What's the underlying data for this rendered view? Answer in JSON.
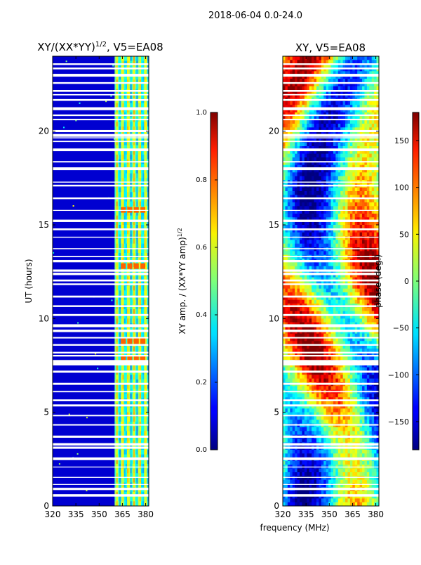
{
  "figure_title": "2018-06-04 0.0-24.0",
  "shared_xlabel": "frequency (MHz)",
  "chart_data": [
    {
      "type": "heatmap",
      "title_main": "XY/(XX*YY)",
      "title_sup": "1/2",
      "title_tail": ", V5=EA08",
      "xlabel": "",
      "ylabel": "UT (hours)",
      "xlim": [
        320,
        382
      ],
      "ylim": [
        0,
        24
      ],
      "x_ticks": [
        320,
        335,
        350,
        365,
        380
      ],
      "y_ticks": [
        0,
        5,
        10,
        15,
        20
      ],
      "colormap": "jet",
      "colorbar": {
        "label_main": "XY amp. / (XX*YY amp)",
        "label_sup": "1/2",
        "range": [
          0.0,
          1.0
        ],
        "ticks": [
          "0.0",
          "0.2",
          "0.4",
          "0.6",
          "0.8",
          "1.0"
        ],
        "tick_values": [
          0.0,
          0.2,
          0.4,
          0.6,
          0.8,
          1.0
        ]
      },
      "background_value": 0.08,
      "bright_band_MHz": [
        360,
        382
      ],
      "hot_rows_UT": [
        7.9,
        8.8,
        12.8,
        15.8
      ]
    },
    {
      "type": "heatmap",
      "title": "XY, V5=EA08",
      "xlabel": "frequency (MHz)",
      "ylabel": "",
      "xlim": [
        320,
        382
      ],
      "ylim": [
        0,
        24
      ],
      "x_ticks": [
        320,
        335,
        350,
        365,
        380
      ],
      "y_ticks": [
        0,
        5,
        10,
        15,
        20
      ],
      "colormap": "jet",
      "colorbar": {
        "label": "phase (deg.)",
        "range": [
          -180,
          180
        ],
        "ticks": [
          "150",
          "100",
          "50",
          "0",
          "−50",
          "−100",
          "−150"
        ],
        "tick_values": [
          150,
          100,
          50,
          0,
          -50,
          -100,
          -150
        ]
      }
    }
  ],
  "colors": {
    "background": "#ffffff",
    "flagged_rows": "#ffffff",
    "axes": "#000000"
  }
}
